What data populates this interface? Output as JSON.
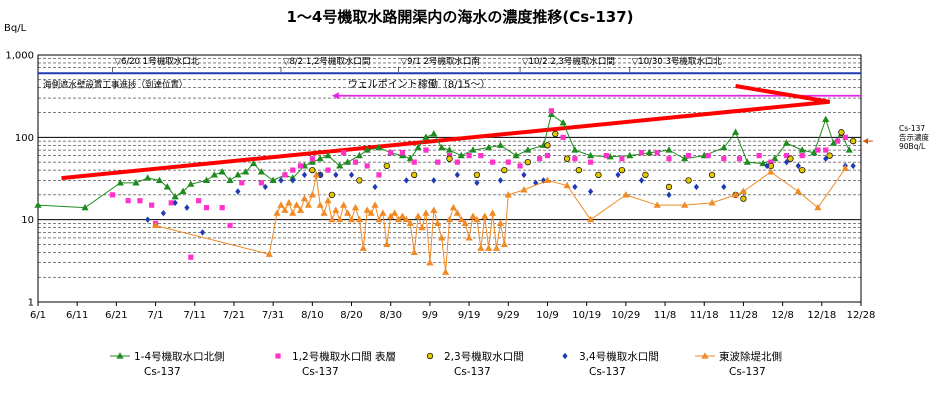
{
  "chart_data": {
    "type": "line",
    "title": "1～4号機取水路開渠内の海水の濃度推移(Cs-137)",
    "ylabel": "Bq/L",
    "xlabel": "",
    "y_scale": "log",
    "ylim": [
      1,
      1000
    ],
    "yticks": [
      "1",
      "10",
      "100",
      "1,000"
    ],
    "xlim": [
      "6/1",
      "12/28"
    ],
    "xticks": [
      "6/1",
      "6/11",
      "6/21",
      "7/1",
      "7/11",
      "7/21",
      "7/31",
      "8/10",
      "8/20",
      "8/30",
      "9/9",
      "9/19",
      "9/29",
      "10/9",
      "10/19",
      "10/29",
      "11/8",
      "11/18",
      "11/28",
      "12/8",
      "12/18",
      "12/28"
    ],
    "grid": true,
    "reference_line": {
      "label_lines": [
        "Cs-137",
        "告示濃度",
        "90Bq/L"
      ],
      "value": 90,
      "color": "#d35400"
    },
    "events": [
      {
        "x": "6/20",
        "label": "▽6/20 1号機取水口北"
      },
      {
        "x": "8/2",
        "label": "▽8/2 1,2号機取水口間"
      },
      {
        "x": "9/1",
        "label": "▽9/1 2号機取水口南"
      },
      {
        "x": "10/2",
        "label": "▽10/2 2,3号機取水口間"
      },
      {
        "x": "10/30",
        "label": "▽10/30 3号機取水口北"
      }
    ],
    "progress_bar_label": "海側遮水壁設置工事進捗（到達位置）",
    "progress_value": 600,
    "progress_color": "#1f3bb3",
    "wellpoint": {
      "label": "ウェルポイント稼働（8/15～）",
      "start": "8/15",
      "value": 320,
      "color": "#e524e8"
    },
    "trend_arrow": {
      "color": "#ff0000",
      "points": [
        [
          "6/7",
          32
        ],
        [
          "12/20",
          270
        ],
        [
          "11/26",
          420
        ]
      ]
    },
    "series": [
      {
        "name": "1-4号機取水口北側",
        "unit": "Cs-137",
        "color": "#1e8b1e",
        "marker": "triangle",
        "points": [
          [
            "6/1",
            15
          ],
          [
            "6/13",
            14
          ],
          [
            "6/22",
            28
          ],
          [
            "6/26",
            28
          ],
          [
            "6/29",
            32
          ],
          [
            "7/2",
            30
          ],
          [
            "7/4",
            25
          ],
          [
            "7/6",
            19
          ],
          [
            "7/8",
            22
          ],
          [
            "7/10",
            27
          ],
          [
            "7/14",
            30
          ],
          [
            "7/16",
            35
          ],
          [
            "7/18",
            38
          ],
          [
            "7/20",
            30
          ],
          [
            "7/22",
            35
          ],
          [
            "7/24",
            38
          ],
          [
            "7/26",
            48
          ],
          [
            "7/28",
            38
          ],
          [
            "7/31",
            30
          ],
          [
            "8/3",
            35
          ],
          [
            "8/5",
            32
          ],
          [
            "8/8",
            45
          ],
          [
            "8/10",
            50
          ],
          [
            "8/12",
            55
          ],
          [
            "8/14",
            60
          ],
          [
            "8/17",
            45
          ],
          [
            "8/19",
            50
          ],
          [
            "8/22",
            60
          ],
          [
            "8/24",
            70
          ],
          [
            "8/27",
            75
          ],
          [
            "8/30",
            65
          ],
          [
            "9/2",
            60
          ],
          [
            "9/4",
            55
          ],
          [
            "9/6",
            75
          ],
          [
            "9/8",
            100
          ],
          [
            "9/10",
            110
          ],
          [
            "9/12",
            75
          ],
          [
            "9/14",
            70
          ],
          [
            "9/17",
            60
          ],
          [
            "9/20",
            70
          ],
          [
            "9/24",
            75
          ],
          [
            "9/27",
            80
          ],
          [
            "10/1",
            60
          ],
          [
            "10/4",
            70
          ],
          [
            "10/8",
            80
          ],
          [
            "10/10",
            190
          ],
          [
            "10/13",
            150
          ],
          [
            "10/16",
            70
          ],
          [
            "10/20",
            60
          ],
          [
            "10/25",
            58
          ],
          [
            "10/30",
            60
          ],
          [
            "11/4",
            65
          ],
          [
            "11/9",
            70
          ],
          [
            "11/13",
            55
          ],
          [
            "11/18",
            60
          ],
          [
            "11/23",
            75
          ],
          [
            "11/26",
            115
          ],
          [
            "11/29",
            50
          ],
          [
            "12/3",
            48
          ],
          [
            "12/6",
            55
          ],
          [
            "12/9",
            85
          ],
          [
            "12/13",
            70
          ],
          [
            "12/16",
            65
          ],
          [
            "12/19",
            165
          ],
          [
            "12/21",
            85
          ],
          [
            "12/23",
            110
          ],
          [
            "12/25",
            70
          ]
        ]
      },
      {
        "name": "1,2号機取水口間 表層",
        "unit": "Cs-137",
        "color": "#ff33cc",
        "marker": "square",
        "points": [
          [
            "6/20",
            20
          ],
          [
            "6/24",
            17
          ],
          [
            "6/27",
            17
          ],
          [
            "6/30",
            15
          ],
          [
            "7/1",
            9
          ],
          [
            "7/5",
            16
          ],
          [
            "7/10",
            3.5
          ],
          [
            "7/12",
            17
          ],
          [
            "7/14",
            14
          ],
          [
            "7/18",
            14
          ],
          [
            "7/20",
            8.5
          ],
          [
            "7/23",
            28
          ],
          [
            "7/28",
            28
          ],
          [
            "8/3",
            35
          ],
          [
            "8/5",
            40
          ],
          [
            "8/7",
            45
          ],
          [
            "8/10",
            55
          ],
          [
            "8/14",
            40
          ],
          [
            "8/18",
            65
          ],
          [
            "8/21",
            50
          ],
          [
            "8/24",
            45
          ],
          [
            "8/27",
            35
          ],
          [
            "8/30",
            65
          ],
          [
            "9/2",
            65
          ],
          [
            "9/5",
            50
          ],
          [
            "9/8",
            70
          ],
          [
            "9/11",
            50
          ],
          [
            "9/14",
            60
          ],
          [
            "9/16",
            50
          ],
          [
            "9/19",
            60
          ],
          [
            "9/22",
            60
          ],
          [
            "9/25",
            50
          ],
          [
            "9/29",
            50
          ],
          [
            "10/2",
            45
          ],
          [
            "10/7",
            55
          ],
          [
            "10/9",
            60
          ],
          [
            "10/10",
            210
          ],
          [
            "10/13",
            100
          ],
          [
            "10/16",
            55
          ],
          [
            "10/20",
            50
          ],
          [
            "10/24",
            60
          ],
          [
            "10/28",
            55
          ],
          [
            "11/2",
            65
          ],
          [
            "11/6",
            65
          ],
          [
            "11/9",
            55
          ],
          [
            "11/14",
            60
          ],
          [
            "11/19",
            60
          ],
          [
            "11/23",
            55
          ],
          [
            "11/27",
            55
          ],
          [
            "12/2",
            60
          ],
          [
            "12/5",
            50
          ],
          [
            "12/9",
            60
          ],
          [
            "12/13",
            60
          ],
          [
            "12/17",
            70
          ],
          [
            "12/19",
            70
          ],
          [
            "12/22",
            90
          ],
          [
            "12/24",
            100
          ]
        ]
      },
      {
        "name": "2,3号機取水口間",
        "unit": "Cs-137",
        "color": "#e6c800",
        "marker": "circle",
        "points": [
          [
            "8/10",
            40
          ],
          [
            "8/12",
            35
          ],
          [
            "8/15",
            20
          ],
          [
            "8/22",
            30
          ],
          [
            "8/29",
            45
          ],
          [
            "9/5",
            35
          ],
          [
            "9/14",
            55
          ],
          [
            "9/21",
            35
          ],
          [
            "9/28",
            40
          ],
          [
            "10/4",
            50
          ],
          [
            "10/9",
            80
          ],
          [
            "10/11",
            110
          ],
          [
            "10/14",
            55
          ],
          [
            "10/17",
            40
          ],
          [
            "10/22",
            35
          ],
          [
            "10/28",
            40
          ],
          [
            "11/3",
            35
          ],
          [
            "11/9",
            25
          ],
          [
            "11/14",
            30
          ],
          [
            "11/20",
            35
          ],
          [
            "11/26",
            20
          ],
          [
            "11/28",
            18
          ],
          [
            "12/5",
            45
          ],
          [
            "12/10",
            55
          ],
          [
            "12/13",
            40
          ],
          [
            "12/20",
            60
          ],
          [
            "12/23",
            115
          ],
          [
            "12/26",
            90
          ]
        ]
      },
      {
        "name": "3,4号機取水口間",
        "unit": "Cs-137",
        "color": "#1f3bb3",
        "marker": "diamond",
        "points": [
          [
            "6/29",
            10
          ],
          [
            "7/3",
            12
          ],
          [
            "7/6",
            16
          ],
          [
            "7/9",
            14
          ],
          [
            "7/13",
            7
          ],
          [
            "7/22",
            22
          ],
          [
            "7/29",
            25
          ],
          [
            "8/2",
            30
          ],
          [
            "8/5",
            30
          ],
          [
            "8/8",
            35
          ],
          [
            "8/12",
            35
          ],
          [
            "8/16",
            35
          ],
          [
            "8/20",
            35
          ],
          [
            "8/26",
            25
          ],
          [
            "9/3",
            30
          ],
          [
            "9/10",
            30
          ],
          [
            "9/16",
            35
          ],
          [
            "9/21",
            28
          ],
          [
            "9/27",
            30
          ],
          [
            "10/3",
            35
          ],
          [
            "10/6",
            28
          ],
          [
            "10/8",
            30
          ],
          [
            "10/16",
            25
          ],
          [
            "10/20",
            22
          ],
          [
            "10/27",
            35
          ],
          [
            "11/2",
            30
          ],
          [
            "11/9",
            20
          ],
          [
            "11/16",
            25
          ],
          [
            "11/23",
            25
          ],
          [
            "11/28",
            22
          ],
          [
            "12/4",
            45
          ],
          [
            "12/9",
            50
          ],
          [
            "12/12",
            45
          ],
          [
            "12/19",
            55
          ],
          [
            "12/24",
            45
          ],
          [
            "12/26",
            45
          ]
        ]
      },
      {
        "name": "東波除堤北側",
        "unit": "Cs-137",
        "color": "#f08a24",
        "marker": "triangle",
        "points": [
          [
            "7/1",
            8.5
          ],
          [
            "7/30",
            3.8
          ],
          [
            "8/1",
            12
          ],
          [
            "8/2",
            15
          ],
          [
            "8/3",
            13
          ],
          [
            "8/4",
            16
          ],
          [
            "8/5",
            12
          ],
          [
            "8/6",
            15
          ],
          [
            "8/7",
            13
          ],
          [
            "8/8",
            18
          ],
          [
            "8/9",
            15
          ],
          [
            "8/10",
            20
          ],
          [
            "8/11",
            35
          ],
          [
            "8/12",
            15
          ],
          [
            "8/13",
            12
          ],
          [
            "8/14",
            17
          ],
          [
            "8/15",
            10
          ],
          [
            "8/16",
            13
          ],
          [
            "8/17",
            10
          ],
          [
            "8/18",
            15
          ],
          [
            "8/19",
            12
          ],
          [
            "8/20",
            10
          ],
          [
            "8/21",
            14
          ],
          [
            "8/22",
            10
          ],
          [
            "8/23",
            4.5
          ],
          [
            "8/24",
            13
          ],
          [
            "8/25",
            12
          ],
          [
            "8/26",
            15
          ],
          [
            "8/27",
            10
          ],
          [
            "8/28",
            12
          ],
          [
            "8/29",
            5
          ],
          [
            "8/30",
            11
          ],
          [
            "8/31",
            12
          ],
          [
            "9/1",
            10
          ],
          [
            "9/2",
            11
          ],
          [
            "9/3",
            10
          ],
          [
            "9/4",
            9
          ],
          [
            "9/5",
            4
          ],
          [
            "9/6",
            11
          ],
          [
            "9/7",
            8
          ],
          [
            "9/8",
            12
          ],
          [
            "9/9",
            3
          ],
          [
            "9/10",
            13
          ],
          [
            "9/11",
            9
          ],
          [
            "9/12",
            6
          ],
          [
            "9/13",
            2.3
          ],
          [
            "9/14",
            10
          ],
          [
            "9/15",
            14
          ],
          [
            "9/16",
            12
          ],
          [
            "9/17",
            10
          ],
          [
            "9/18",
            9
          ],
          [
            "9/19",
            6
          ],
          [
            "9/20",
            11
          ],
          [
            "9/21",
            10
          ],
          [
            "9/22",
            4.5
          ],
          [
            "9/23",
            11
          ],
          [
            "9/24",
            4.5
          ],
          [
            "9/25",
            12
          ],
          [
            "9/26",
            4.5
          ],
          [
            "9/27",
            9
          ],
          [
            "9/28",
            5
          ],
          [
            "9/29",
            20
          ],
          [
            "10/3",
            23
          ],
          [
            "10/9",
            30
          ],
          [
            "10/14",
            26
          ],
          [
            "10/20",
            10
          ],
          [
            "10/29",
            20
          ],
          [
            "11/6",
            15
          ],
          [
            "11/13",
            15
          ],
          [
            "11/20",
            16
          ],
          [
            "11/26",
            20
          ],
          [
            "11/28",
            22
          ],
          [
            "12/5",
            38
          ],
          [
            "12/12",
            22
          ],
          [
            "12/17",
            14
          ],
          [
            "12/24",
            42
          ]
        ]
      }
    ]
  }
}
